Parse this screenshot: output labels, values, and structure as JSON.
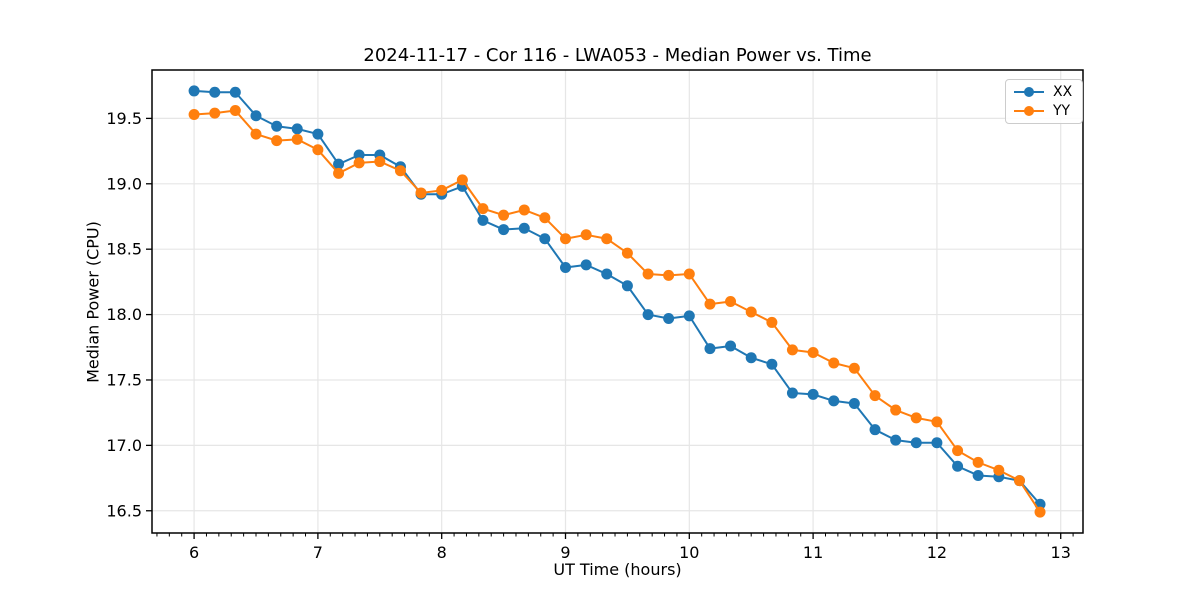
{
  "chart": {
    "title": "2024-11-17 - Cor 116 - LWA053 - Median Power vs. Time",
    "xlabel": "UT Time (hours)",
    "ylabel": "Median Power (CPU)"
  },
  "chart_data": {
    "type": "line",
    "title": "2024-11-17 - Cor 116 - LWA053 - Median Power vs. Time",
    "xlabel": "UT Time (hours)",
    "ylabel": "Median Power (CPU)",
    "xlim": [
      5.66,
      13.18
    ],
    "ylim": [
      16.33,
      19.87
    ],
    "xticks": [
      6,
      7,
      8,
      9,
      10,
      11,
      12,
      13
    ],
    "yticks": [
      16.5,
      17.0,
      17.5,
      18.0,
      18.5,
      19.0,
      19.5
    ],
    "minor_xtick_step": 0.1,
    "grid": true,
    "grid_color": "#e6e6e6",
    "legend_position": "upper right",
    "marker": "circle",
    "x": [
      6.0,
      6.167,
      6.333,
      6.5,
      6.667,
      6.833,
      7.0,
      7.167,
      7.333,
      7.5,
      7.667,
      7.833,
      8.0,
      8.167,
      8.333,
      8.5,
      8.667,
      8.833,
      9.0,
      9.167,
      9.333,
      9.5,
      9.667,
      9.833,
      10.0,
      10.167,
      10.333,
      10.5,
      10.667,
      10.833,
      11.0,
      11.167,
      11.333,
      11.5,
      11.667,
      11.833,
      12.0,
      12.167,
      12.333,
      12.5,
      12.667,
      12.833
    ],
    "series": [
      {
        "name": "XX",
        "color": "#1f77b4",
        "values": [
          19.71,
          19.7,
          19.7,
          19.52,
          19.44,
          19.42,
          19.38,
          19.15,
          19.22,
          19.22,
          19.13,
          18.92,
          18.92,
          18.98,
          18.72,
          18.65,
          18.66,
          18.58,
          18.36,
          18.38,
          18.31,
          18.22,
          18.0,
          17.97,
          17.99,
          17.74,
          17.76,
          17.67,
          17.62,
          17.4,
          17.39,
          17.34,
          17.32,
          17.12,
          17.04,
          17.02,
          17.02,
          16.84,
          16.77,
          16.76,
          16.73,
          16.55
        ]
      },
      {
        "name": "YY",
        "color": "#ff7f0e",
        "values": [
          19.53,
          19.54,
          19.56,
          19.38,
          19.33,
          19.34,
          19.26,
          19.08,
          19.16,
          19.17,
          19.1,
          18.93,
          18.95,
          19.03,
          18.81,
          18.76,
          18.8,
          18.74,
          18.58,
          18.61,
          18.58,
          18.47,
          18.31,
          18.3,
          18.31,
          18.08,
          18.1,
          18.02,
          17.94,
          17.73,
          17.71,
          17.63,
          17.59,
          17.38,
          17.27,
          17.21,
          17.18,
          16.96,
          16.87,
          16.81,
          16.73,
          16.49
        ]
      }
    ]
  }
}
